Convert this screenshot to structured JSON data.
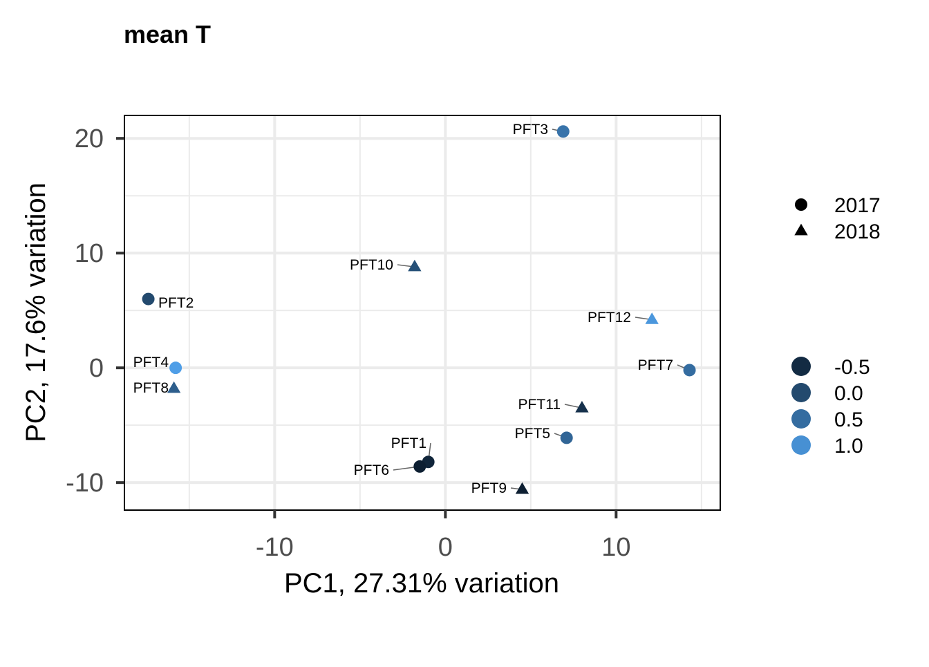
{
  "chart_data": {
    "type": "scatter",
    "title": "mean T",
    "xlabel": "PC1, 27.31% variation",
    "ylabel": "PC2, 17.6% variation",
    "xlim": [
      -18.8,
      16.1
    ],
    "ylim": [
      -12.4,
      22.0
    ],
    "x_ticks": [
      -10,
      0,
      10
    ],
    "x_tick_labels": [
      "-10",
      "0",
      "10"
    ],
    "y_ticks": [
      -10,
      0,
      10,
      20
    ],
    "y_tick_labels": [
      "-10",
      "0",
      "10",
      "20"
    ],
    "grid": true,
    "legend_placement": "right",
    "shape_legend": [
      {
        "label": "2017",
        "shape": "circle"
      },
      {
        "label": "2018",
        "shape": "triangle"
      }
    ],
    "color_legend": [
      {
        "label": "-0.5",
        "value": -0.5,
        "color": "#132B43"
      },
      {
        "label": "0.0",
        "value": 0.0,
        "color": "#234A6E"
      },
      {
        "label": "0.5",
        "value": 0.5,
        "color": "#346CA0"
      },
      {
        "label": "1.0",
        "value": 1.0,
        "color": "#4790D3"
      }
    ],
    "points": [
      {
        "label": "PFT1",
        "x": -1.0,
        "y": -8.2,
        "year": "2017",
        "value": -0.6
      },
      {
        "label": "PFT2",
        "x": -17.4,
        "y": 6.0,
        "year": "2017",
        "value": 0.0
      },
      {
        "label": "PFT3",
        "x": 6.9,
        "y": 20.6,
        "year": "2017",
        "value": 0.6
      },
      {
        "label": "PFT4",
        "x": -15.8,
        "y": 0.0,
        "year": "2017",
        "value": 1.2
      },
      {
        "label": "PFT5",
        "x": 7.1,
        "y": -6.1,
        "year": "2017",
        "value": 0.4
      },
      {
        "label": "PFT6",
        "x": -1.5,
        "y": -8.6,
        "year": "2017",
        "value": -0.7
      },
      {
        "label": "PFT7",
        "x": 14.3,
        "y": -0.2,
        "year": "2017",
        "value": 0.5
      },
      {
        "label": "PFT8",
        "x": -15.9,
        "y": -1.8,
        "year": "2018",
        "value": 0.3
      },
      {
        "label": "PFT9",
        "x": 4.5,
        "y": -10.6,
        "year": "2018",
        "value": -0.7
      },
      {
        "label": "PFT10",
        "x": -1.8,
        "y": 8.8,
        "year": "2018",
        "value": 0.1
      },
      {
        "label": "PFT11",
        "x": 8.0,
        "y": -3.5,
        "year": "2018",
        "value": -0.4
      },
      {
        "label": "PFT12",
        "x": 12.1,
        "y": 4.2,
        "year": "2018",
        "value": 1.1
      }
    ]
  }
}
